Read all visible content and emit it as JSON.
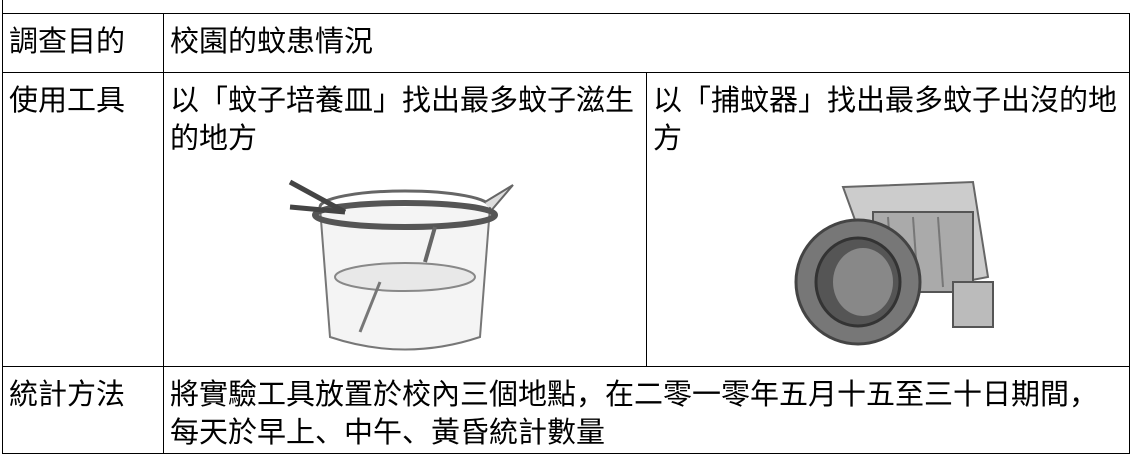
{
  "table": {
    "rows": [
      [
        "調查目的",
        "校園的蚊患情況"
      ],
      [
        "使用工具",
        "以「蚊子培養皿」找出最多蚊子滋生的地方",
        "以「捕蚊器」找出最多蚊子出沒的地方"
      ],
      [
        "統計方法",
        "將實驗工具放置於校內三個地點，在二零一零年五月十五至三十日期間，每天於早上、中午、黃昏統計數量"
      ]
    ]
  }
}
